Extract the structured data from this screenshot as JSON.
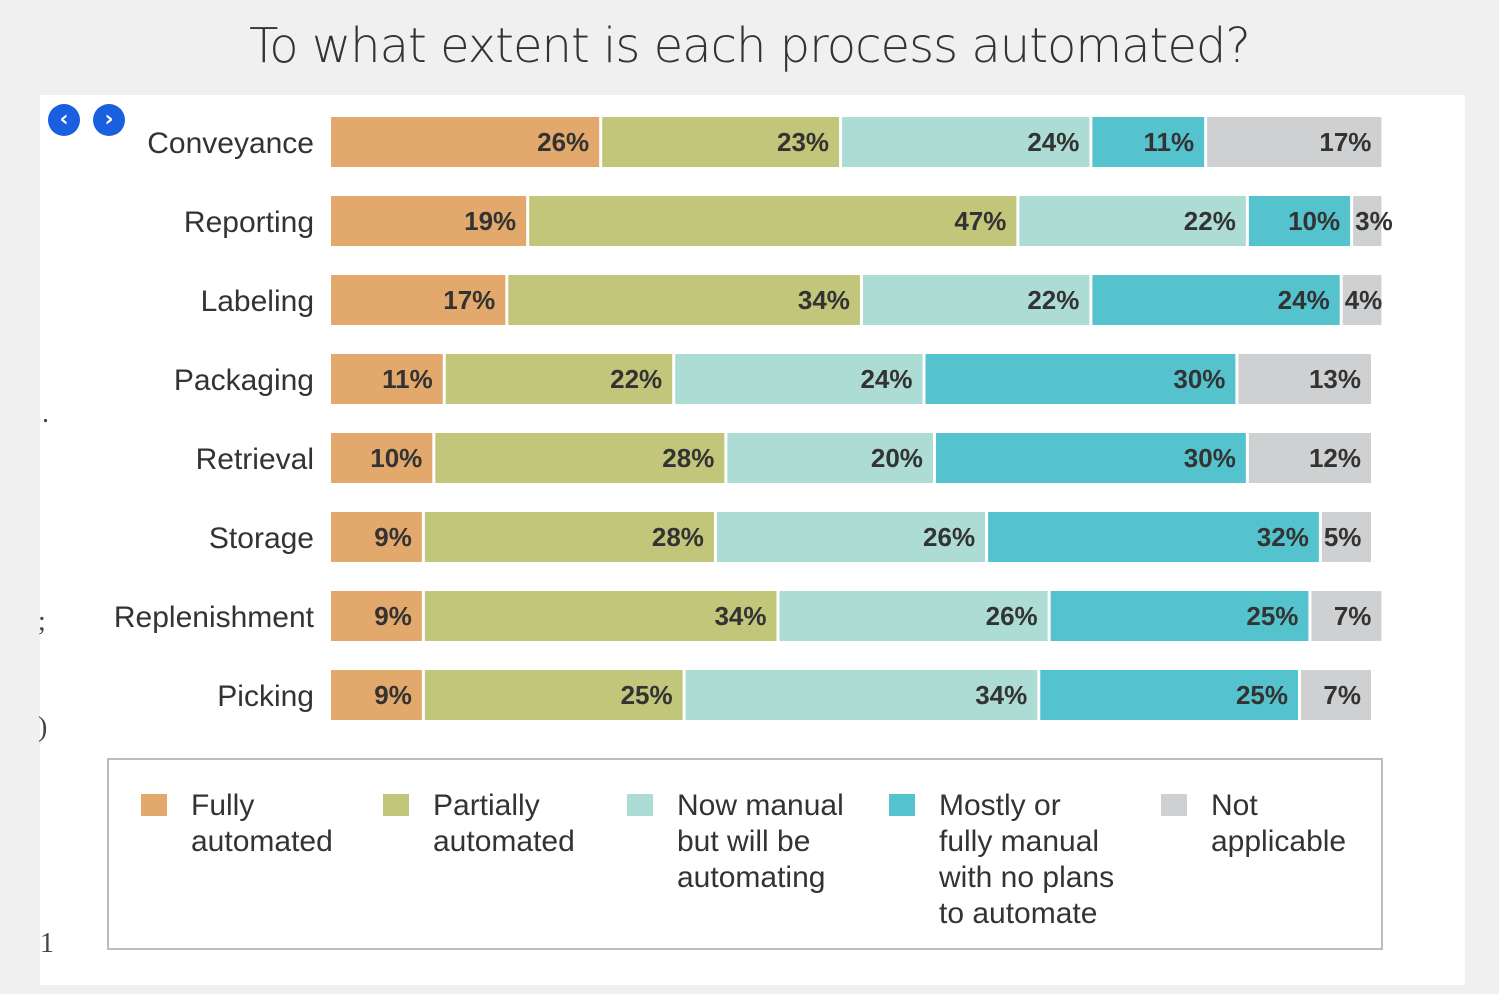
{
  "title": "To what extent is each process automated?",
  "nav": {
    "prev_icon": "chevron-left-icon",
    "next_icon": "chevron-right-icon",
    "prev_glyph": "‹",
    "next_glyph": "›"
  },
  "stray_marks": [
    ".",
    ";",
    ")",
    "1"
  ],
  "colors": {
    "fully": "#e3a96c",
    "partially": "#c1c67b",
    "now_manual": "#acdcd3",
    "mostly_manual": "#55c3ce",
    "not_applicable": "#cfd0d2"
  },
  "chart_data": {
    "type": "bar",
    "orientation": "horizontal",
    "stacked": true,
    "title": "To what extent is each process automated?",
    "categories": [
      "Conveyance",
      "Reporting",
      "Labeling",
      "Packaging",
      "Retrieval",
      "Storage",
      "Replenishment",
      "Picking"
    ],
    "series": [
      {
        "name": "Fully\nautomated",
        "color_key": "fully",
        "values": [
          26,
          19,
          17,
          11,
          10,
          9,
          9,
          9
        ]
      },
      {
        "name": "Partially\nautomated",
        "color_key": "partially",
        "values": [
          23,
          47,
          34,
          22,
          28,
          28,
          34,
          25
        ]
      },
      {
        "name": "Now manual\nbut will be\nautomating",
        "color_key": "now_manual",
        "values": [
          24,
          22,
          22,
          24,
          20,
          26,
          26,
          34
        ]
      },
      {
        "name": "Mostly or\nfully manual\nwith no plans\nto automate",
        "color_key": "mostly_manual",
        "values": [
          11,
          10,
          24,
          30,
          30,
          32,
          25,
          25
        ]
      },
      {
        "name": "Not\napplicable",
        "color_key": "not_applicable",
        "values": [
          17,
          3,
          4,
          13,
          12,
          5,
          7,
          7
        ]
      }
    ],
    "value_suffix": "%",
    "legend_position": "bottom",
    "grid": false
  }
}
